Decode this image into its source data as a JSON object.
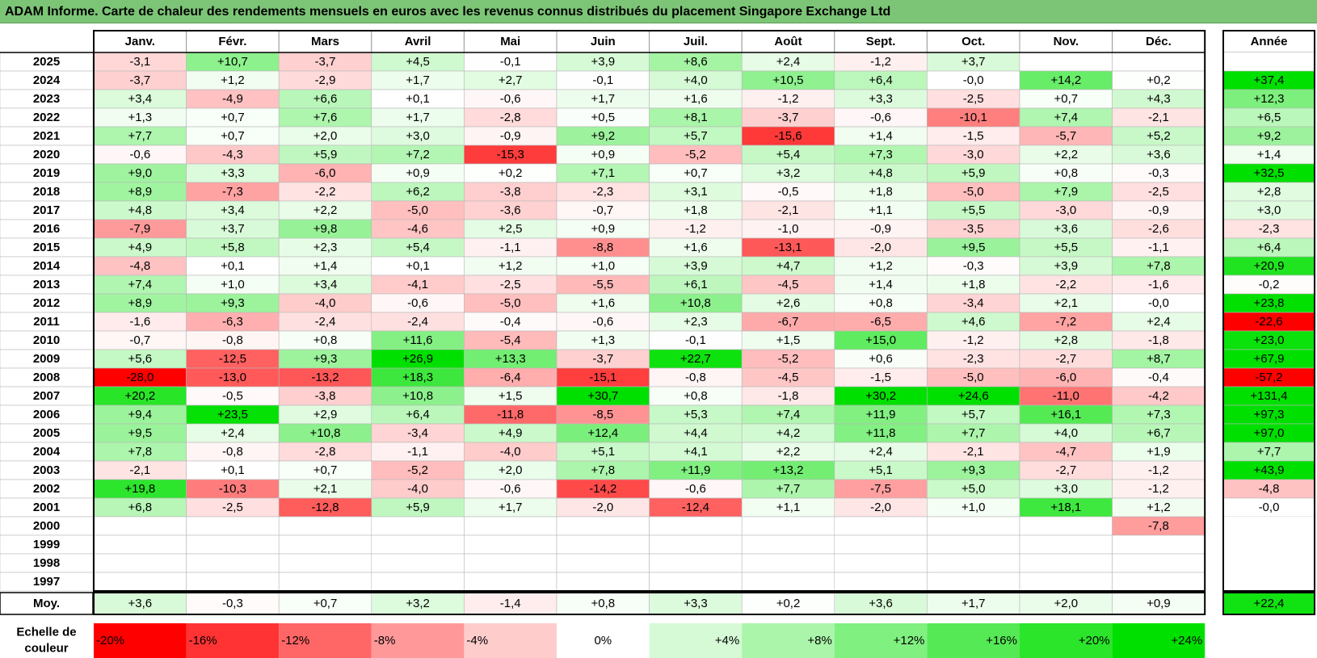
{
  "title": "ADAM Informe. Carte de chaleur des rendements mensuels en euros avec les revenus connus distribués du placement Singapore Exchange Ltd",
  "colors": {
    "positive_max": "#00e000",
    "negative_max": "#ff0000",
    "neutral": "#ffffff",
    "title_bg": "#7cc576"
  },
  "chart_data": {
    "type": "heatmap",
    "months": [
      "Janv.",
      "Févr.",
      "Mars",
      "Avril",
      "Mai",
      "Juin",
      "Juil.",
      "Août",
      "Sept.",
      "Oct.",
      "Nov.",
      "Déc."
    ],
    "year_header": "Année",
    "rows": [
      {
        "year": "2025",
        "values": [
          "-3,1",
          "+10,7",
          "-3,7",
          "+4,5",
          "-0,1",
          "+3,9",
          "+8,6",
          "+2,4",
          "-1,2",
          "+3,7",
          "",
          ""
        ],
        "annual": ""
      },
      {
        "year": "2024",
        "values": [
          "-3,7",
          "+1,2",
          "-2,9",
          "+1,7",
          "+2,7",
          "-0,1",
          "+4,0",
          "+10,5",
          "+6,4",
          "-0,0",
          "+14,2",
          "+0,2"
        ],
        "annual": "+37,4"
      },
      {
        "year": "2023",
        "values": [
          "+3,4",
          "-4,9",
          "+6,6",
          "+0,1",
          "-0,6",
          "+1,7",
          "+1,6",
          "-1,2",
          "+3,3",
          "-2,5",
          "+0,7",
          "+4,3"
        ],
        "annual": "+12,3"
      },
      {
        "year": "2022",
        "values": [
          "+1,3",
          "+0,7",
          "+7,6",
          "+1,7",
          "-2,8",
          "+0,5",
          "+8,1",
          "-3,7",
          "-0,6",
          "-10,1",
          "+7,4",
          "-2,1"
        ],
        "annual": "+6,5"
      },
      {
        "year": "2021",
        "values": [
          "+7,7",
          "+0,7",
          "+2,0",
          "+3,0",
          "-0,9",
          "+9,2",
          "+5,7",
          "-15,6",
          "+1,4",
          "-1,5",
          "-5,7",
          "+5,2"
        ],
        "annual": "+9,2"
      },
      {
        "year": "2020",
        "values": [
          "-0,6",
          "-4,3",
          "+5,9",
          "+7,2",
          "-15,3",
          "+0,9",
          "-5,2",
          "+5,4",
          "+7,3",
          "-3,0",
          "+2,2",
          "+3,6"
        ],
        "annual": "+1,4"
      },
      {
        "year": "2019",
        "values": [
          "+9,0",
          "+3,3",
          "-6,0",
          "+0,9",
          "+0,2",
          "+7,1",
          "+0,7",
          "+3,2",
          "+4,8",
          "+5,9",
          "+0,8",
          "-0,3"
        ],
        "annual": "+32,5"
      },
      {
        "year": "2018",
        "values": [
          "+8,9",
          "-7,3",
          "-2,2",
          "+6,2",
          "-3,8",
          "-2,3",
          "+3,1",
          "-0,5",
          "+1,8",
          "-5,0",
          "+7,9",
          "-2,5"
        ],
        "annual": "+2,8"
      },
      {
        "year": "2017",
        "values": [
          "+4,8",
          "+3,4",
          "+2,2",
          "-5,0",
          "-3,6",
          "-0,7",
          "+1,8",
          "-2,1",
          "+1,1",
          "+5,5",
          "-3,0",
          "-0,9"
        ],
        "annual": "+3,0"
      },
      {
        "year": "2016",
        "values": [
          "-7,9",
          "+3,7",
          "+9,8",
          "-4,6",
          "+2,5",
          "+0,9",
          "-1,2",
          "-1,0",
          "-0,9",
          "-3,5",
          "+3,6",
          "-2,6"
        ],
        "annual": "-2,3"
      },
      {
        "year": "2015",
        "values": [
          "+4,9",
          "+5,8",
          "+2,3",
          "+5,4",
          "-1,1",
          "-8,8",
          "+1,6",
          "-13,1",
          "-2,0",
          "+9,5",
          "+5,5",
          "-1,1"
        ],
        "annual": "+6,4"
      },
      {
        "year": "2014",
        "values": [
          "-4,8",
          "+0,1",
          "+1,4",
          "+0,1",
          "+1,2",
          "+1,0",
          "+3,9",
          "+4,7",
          "+1,2",
          "-0,3",
          "+3,9",
          "+7,8"
        ],
        "annual": "+20,9"
      },
      {
        "year": "2013",
        "values": [
          "+7,4",
          "+1,0",
          "+3,4",
          "-4,1",
          "-2,5",
          "-5,5",
          "+6,1",
          "-4,5",
          "+1,4",
          "+1,8",
          "-2,2",
          "-1,6"
        ],
        "annual": "-0,2"
      },
      {
        "year": "2012",
        "values": [
          "+8,9",
          "+9,3",
          "-4,0",
          "-0,6",
          "-5,0",
          "+1,6",
          "+10,8",
          "+2,6",
          "+0,8",
          "-3,4",
          "+2,1",
          "-0,0"
        ],
        "annual": "+23,8"
      },
      {
        "year": "2011",
        "values": [
          "-1,6",
          "-6,3",
          "-2,4",
          "-2,4",
          "-0,4",
          "-0,6",
          "+2,3",
          "-6,7",
          "-6,5",
          "+4,6",
          "-7,2",
          "+2,4"
        ],
        "annual": "-22,6"
      },
      {
        "year": "2010",
        "values": [
          "-0,7",
          "-0,8",
          "+0,8",
          "+11,6",
          "-5,4",
          "+1,3",
          "-0,1",
          "+1,5",
          "+15,0",
          "-1,2",
          "+2,8",
          "-1,8"
        ],
        "annual": "+23,0"
      },
      {
        "year": "2009",
        "values": [
          "+5,6",
          "-12,5",
          "+9,3",
          "+26,9",
          "+13,3",
          "-3,7",
          "+22,7",
          "-5,2",
          "+0,6",
          "-2,3",
          "-2,7",
          "+8,7"
        ],
        "annual": "+67,9"
      },
      {
        "year": "2008",
        "values": [
          "-28,0",
          "-13,0",
          "-13,2",
          "+18,3",
          "-6,4",
          "-15,1",
          "-0,8",
          "-4,5",
          "-1,5",
          "-5,0",
          "-6,0",
          "-0,4"
        ],
        "annual": "-57,2"
      },
      {
        "year": "2007",
        "values": [
          "+20,2",
          "-0,5",
          "-3,8",
          "+10,8",
          "+1,5",
          "+30,7",
          "+0,8",
          "-1,8",
          "+30,2",
          "+24,6",
          "-11,0",
          "-4,2"
        ],
        "annual": "+131,4"
      },
      {
        "year": "2006",
        "values": [
          "+9,4",
          "+23,5",
          "+2,9",
          "+6,4",
          "-11,8",
          "-8,5",
          "+5,3",
          "+7,4",
          "+11,9",
          "+5,7",
          "+16,1",
          "+7,3"
        ],
        "annual": "+97,3"
      },
      {
        "year": "2005",
        "values": [
          "+9,5",
          "+2,4",
          "+10,8",
          "-3,4",
          "+4,9",
          "+12,4",
          "+4,4",
          "+4,2",
          "+11,8",
          "+7,7",
          "+4,0",
          "+6,7"
        ],
        "annual": "+97,0"
      },
      {
        "year": "2004",
        "values": [
          "+7,8",
          "-0,8",
          "-2,8",
          "-1,1",
          "-4,0",
          "+5,1",
          "+4,1",
          "+2,2",
          "+2,4",
          "-2,1",
          "-4,7",
          "+1,9"
        ],
        "annual": "+7,7"
      },
      {
        "year": "2003",
        "values": [
          "-2,1",
          "+0,1",
          "+0,7",
          "-5,2",
          "+2,0",
          "+7,8",
          "+11,9",
          "+13,2",
          "+5,1",
          "+9,3",
          "-2,7",
          "-1,2"
        ],
        "annual": "+43,9"
      },
      {
        "year": "2002",
        "values": [
          "+19,8",
          "-10,3",
          "+2,1",
          "-4,0",
          "-0,6",
          "-14,2",
          "-0,6",
          "+7,7",
          "-7,5",
          "+5,0",
          "+3,0",
          "-1,2"
        ],
        "annual": "-4,8"
      },
      {
        "year": "2001",
        "values": [
          "+6,8",
          "-2,5",
          "-12,8",
          "+5,9",
          "+1,7",
          "-2,0",
          "-12,4",
          "+1,1",
          "-2,0",
          "+1,0",
          "+18,1",
          "+1,2"
        ],
        "annual": "-0,0"
      },
      {
        "year": "2000",
        "values": [
          "",
          "",
          "",
          "",
          "",
          "",
          "",
          "",
          "",
          "",
          "",
          "-7,8"
        ],
        "annual": ""
      },
      {
        "year": "1999",
        "values": [
          "",
          "",
          "",
          "",
          "",
          "",
          "",
          "",
          "",
          "",
          "",
          ""
        ],
        "annual": ""
      },
      {
        "year": "1998",
        "values": [
          "",
          "",
          "",
          "",
          "",
          "",
          "",
          "",
          "",
          "",
          "",
          ""
        ],
        "annual": ""
      },
      {
        "year": "1997",
        "values": [
          "",
          "",
          "",
          "",
          "",
          "",
          "",
          "",
          "",
          "",
          "",
          ""
        ],
        "annual": ""
      }
    ],
    "average": {
      "label": "Moy.",
      "values": [
        "+3,6",
        "-0,3",
        "+0,7",
        "+3,2",
        "-1,4",
        "+0,8",
        "+3,3",
        "+0,2",
        "+3,6",
        "+1,7",
        "+2,0",
        "+0,9"
      ],
      "annual": "+22,4"
    },
    "scale": {
      "label_line1": "Echelle de",
      "label_line2": "couleur",
      "steps": [
        {
          "label": "-20%",
          "value": -20
        },
        {
          "label": "-16%",
          "value": -16
        },
        {
          "label": "-12%",
          "value": -12
        },
        {
          "label": "-8%",
          "value": -8
        },
        {
          "label": "-4%",
          "value": -4
        },
        {
          "label": "0%",
          "value": 0
        },
        {
          "label": "+4%",
          "value": 4
        },
        {
          "label": "+8%",
          "value": 8
        },
        {
          "label": "+12%",
          "value": 12
        },
        {
          "label": "+16%",
          "value": 16
        },
        {
          "label": "+20%",
          "value": 20
        },
        {
          "label": "+24%",
          "value": 24
        }
      ]
    }
  }
}
